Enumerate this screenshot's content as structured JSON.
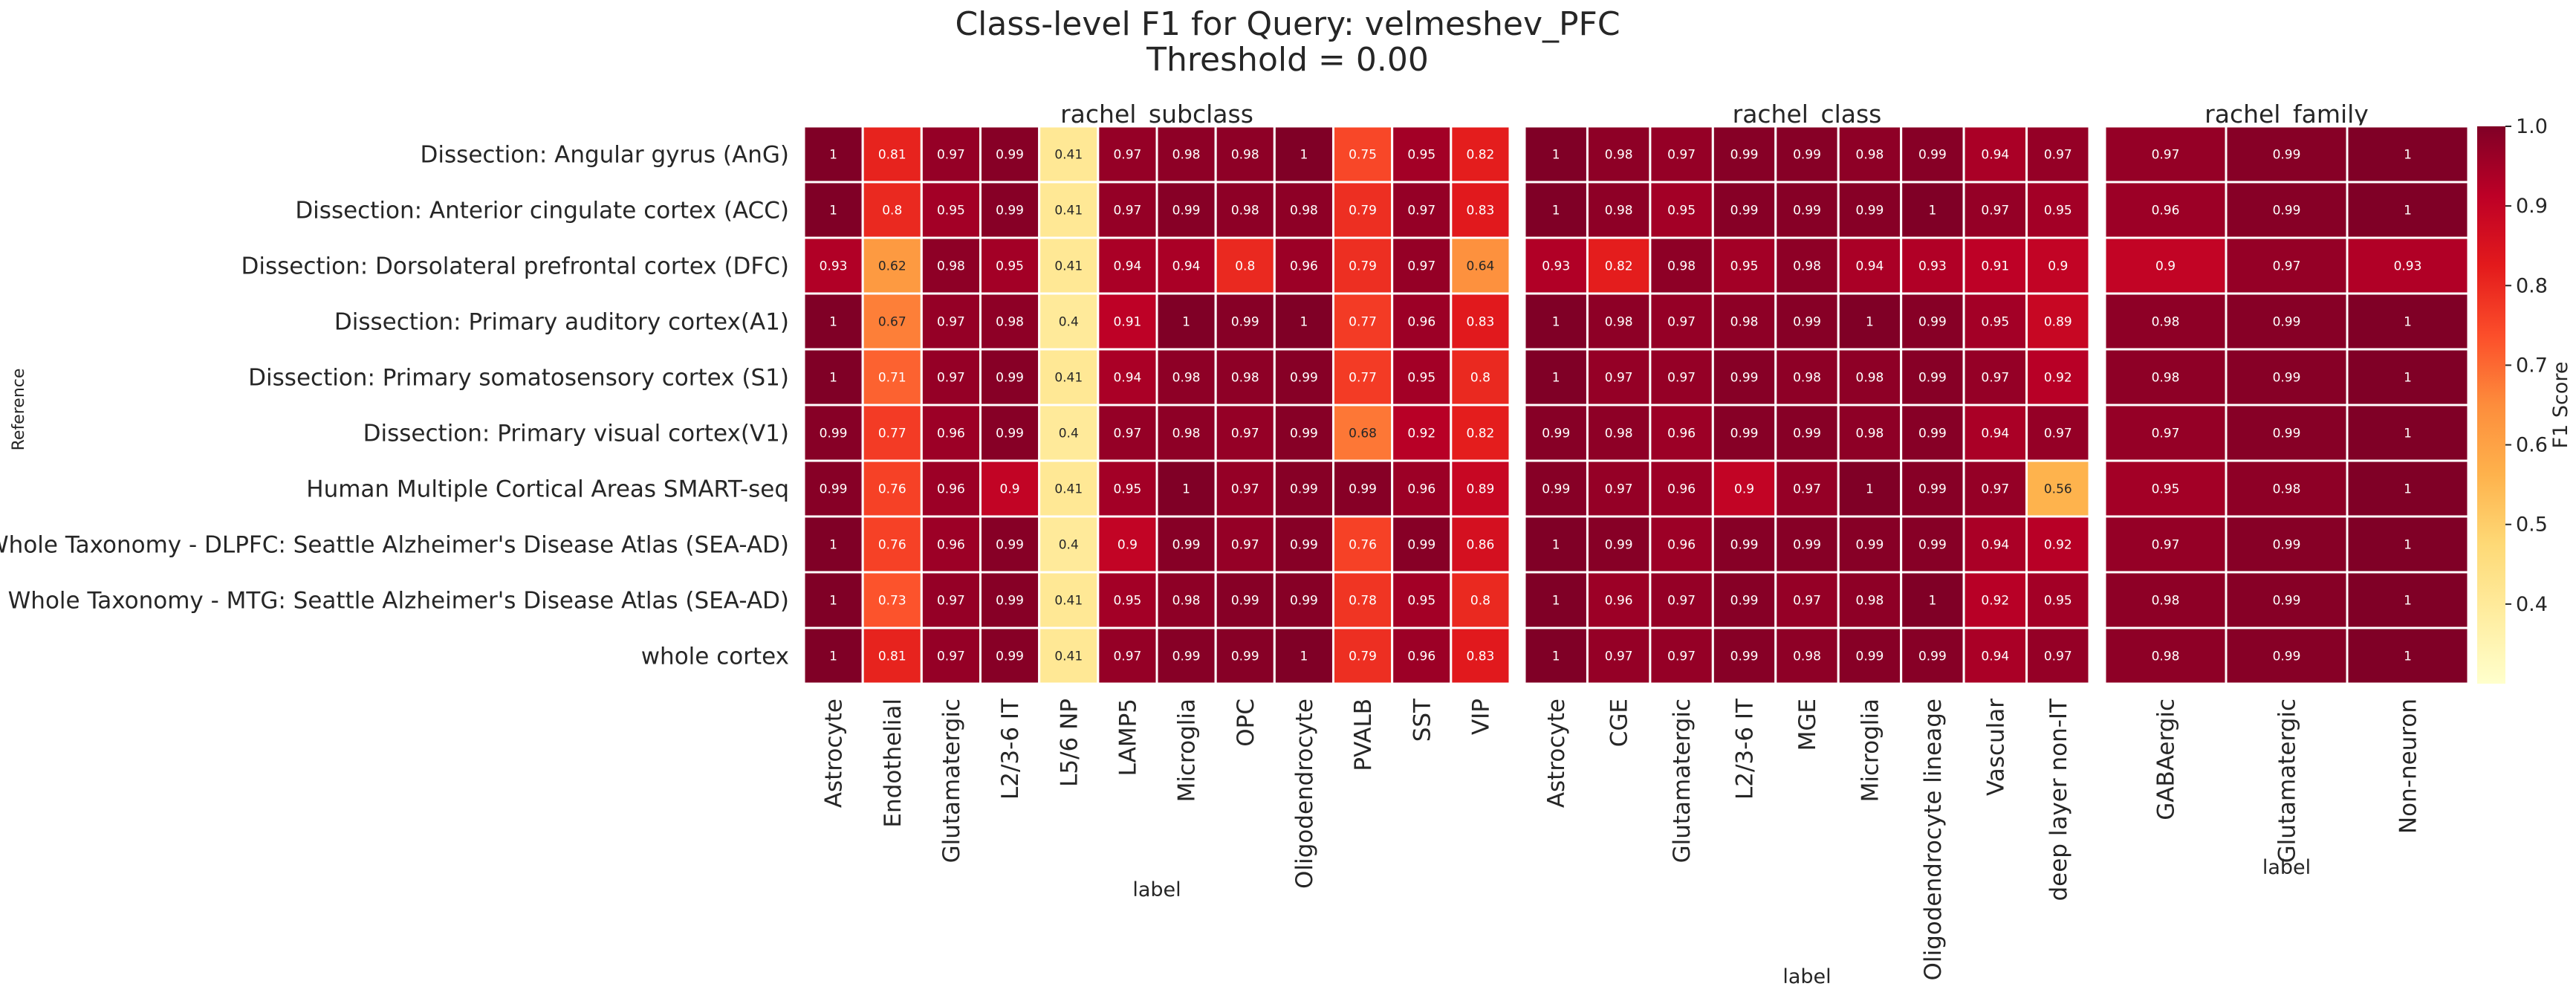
{
  "chart_data": {
    "type": "heatmap",
    "title_line1": "Class-level F1 for Query: velmeshev_PFC",
    "title_line2": "Threshold = 0.00",
    "ylabel": "Reference",
    "rows": [
      "Dissection: Angular gyrus (AnG)",
      "Dissection: Anterior cingulate cortex (ACC)",
      "Dissection: Dorsolateral prefrontal cortex (DFC)",
      "Dissection: Primary auditory cortex(A1)",
      "Dissection: Primary somatosensory cortex (S1)",
      "Dissection: Primary visual cortex(V1)",
      "Human Multiple Cortical Areas SMART-seq",
      "Whole Taxonomy - DLPFC: Seattle Alzheimer's Disease Atlas (SEA-AD)",
      "Whole Taxonomy - MTG: Seattle Alzheimer's Disease Atlas (SEA-AD)",
      "whole cortex"
    ],
    "colorbar": {
      "label": "F1 Score",
      "min": 0.3,
      "max": 1.0,
      "ticks": [
        "0.4",
        "0.5",
        "0.6",
        "0.7",
        "0.8",
        "0.9",
        "1.0"
      ],
      "colormap": "YlOrRd"
    },
    "panels": [
      {
        "title": "rachel_subclass",
        "xlabel": "label",
        "columns": [
          "Astrocyte",
          "Endothelial",
          "Glutamatergic",
          "L2/3-6 IT",
          "L5/6 NP",
          "LAMP5",
          "Microglia",
          "OPC",
          "Oligodendrocyte",
          "PVALB",
          "SST",
          "VIP"
        ],
        "values": [
          [
            "1",
            "0.81",
            "0.97",
            "0.99",
            "0.41",
            "0.97",
            "0.98",
            "0.98",
            "1",
            "0.75",
            "0.95",
            "0.82"
          ],
          [
            "1",
            "0.8",
            "0.95",
            "0.99",
            "0.41",
            "0.97",
            "0.99",
            "0.98",
            "0.98",
            "0.79",
            "0.97",
            "0.83"
          ],
          [
            "0.93",
            "0.62",
            "0.98",
            "0.95",
            "0.41",
            "0.94",
            "0.94",
            "0.8",
            "0.96",
            "0.79",
            "0.97",
            "0.64"
          ],
          [
            "1",
            "0.67",
            "0.97",
            "0.98",
            "0.4",
            "0.91",
            "1",
            "0.99",
            "1",
            "0.77",
            "0.96",
            "0.83"
          ],
          [
            "1",
            "0.71",
            "0.97",
            "0.99",
            "0.41",
            "0.94",
            "0.98",
            "0.98",
            "0.99",
            "0.77",
            "0.95",
            "0.8"
          ],
          [
            "0.99",
            "0.77",
            "0.96",
            "0.99",
            "0.4",
            "0.97",
            "0.98",
            "0.97",
            "0.99",
            "0.68",
            "0.92",
            "0.82"
          ],
          [
            "0.99",
            "0.76",
            "0.96",
            "0.9",
            "0.41",
            "0.95",
            "1",
            "0.97",
            "0.99",
            "0.99",
            "0.96",
            "0.89"
          ],
          [
            "1",
            "0.76",
            "0.96",
            "0.99",
            "0.4",
            "0.9",
            "0.99",
            "0.97",
            "0.99",
            "0.76",
            "0.99",
            "0.86"
          ],
          [
            "1",
            "0.73",
            "0.97",
            "0.99",
            "0.41",
            "0.95",
            "0.98",
            "0.99",
            "0.99",
            "0.78",
            "0.95",
            "0.8"
          ],
          [
            "1",
            "0.81",
            "0.97",
            "0.99",
            "0.41",
            "0.97",
            "0.99",
            "0.99",
            "1",
            "0.79",
            "0.96",
            "0.83"
          ]
        ]
      },
      {
        "title": "rachel_class",
        "xlabel": "label",
        "columns": [
          "Astrocyte",
          "CGE",
          "Glutamatergic",
          "L2/3-6 IT",
          "MGE",
          "Microglia",
          "Oligodendrocyte lineage",
          "Vascular",
          "deep layer non-IT"
        ],
        "values": [
          [
            "1",
            "0.98",
            "0.97",
            "0.99",
            "0.99",
            "0.98",
            "0.99",
            "0.94",
            "0.97"
          ],
          [
            "1",
            "0.98",
            "0.95",
            "0.99",
            "0.99",
            "0.99",
            "1",
            "0.97",
            "0.95"
          ],
          [
            "0.93",
            "0.82",
            "0.98",
            "0.95",
            "0.98",
            "0.94",
            "0.93",
            "0.91",
            "0.9"
          ],
          [
            "1",
            "0.98",
            "0.97",
            "0.98",
            "0.99",
            "1",
            "0.99",
            "0.95",
            "0.89"
          ],
          [
            "1",
            "0.97",
            "0.97",
            "0.99",
            "0.98",
            "0.98",
            "0.99",
            "0.97",
            "0.92"
          ],
          [
            "0.99",
            "0.98",
            "0.96",
            "0.99",
            "0.99",
            "0.98",
            "0.99",
            "0.94",
            "0.97"
          ],
          [
            "0.99",
            "0.97",
            "0.96",
            "0.9",
            "0.97",
            "1",
            "0.99",
            "0.97",
            "0.56"
          ],
          [
            "1",
            "0.99",
            "0.96",
            "0.99",
            "0.99",
            "0.99",
            "0.99",
            "0.94",
            "0.92"
          ],
          [
            "1",
            "0.96",
            "0.97",
            "0.99",
            "0.97",
            "0.98",
            "1",
            "0.92",
            "0.95"
          ],
          [
            "1",
            "0.97",
            "0.97",
            "0.99",
            "0.98",
            "0.99",
            "0.99",
            "0.94",
            "0.97"
          ]
        ]
      },
      {
        "title": "rachel_family",
        "xlabel": "label",
        "columns": [
          "GABAergic",
          "Glutamatergic",
          "Non-neuron"
        ],
        "values": [
          [
            "0.97",
            "0.99",
            "1"
          ],
          [
            "0.96",
            "0.99",
            "1"
          ],
          [
            "0.9",
            "0.97",
            "0.93"
          ],
          [
            "0.98",
            "0.99",
            "1"
          ],
          [
            "0.98",
            "0.99",
            "1"
          ],
          [
            "0.97",
            "0.99",
            "1"
          ],
          [
            "0.95",
            "0.98",
            "1"
          ],
          [
            "0.97",
            "0.99",
            "1"
          ],
          [
            "0.98",
            "0.99",
            "1"
          ],
          [
            "0.98",
            "0.99",
            "1"
          ]
        ]
      }
    ]
  }
}
